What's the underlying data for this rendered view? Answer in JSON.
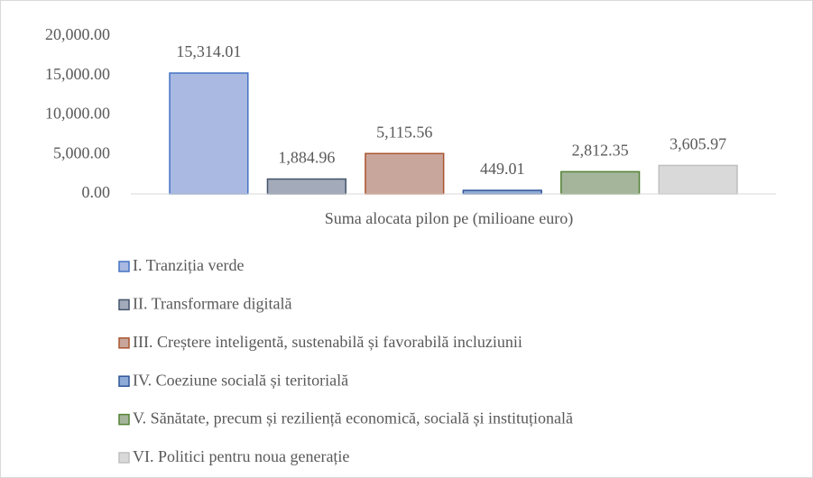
{
  "chart_data": {
    "type": "bar",
    "categories": [
      "Suma alocata pilon pe (milioane euro)"
    ],
    "series": [
      {
        "name": "I. Tranziția verde",
        "color": "#a9b9e2",
        "edgecolor": "#4472c4",
        "values": [
          15314.01
        ],
        "value_labels": [
          "15,314.01"
        ]
      },
      {
        "name": "II. Transformare digitală",
        "color": "#a3aab9",
        "edgecolor": "#44546a",
        "values": [
          1884.96
        ],
        "value_labels": [
          "1,884.96"
        ]
      },
      {
        "name": "III. Creștere inteligentă, sustenabilă și favorabilă incluziunii",
        "color": "#c9a69c",
        "edgecolor": "#a9552f",
        "values": [
          5115.56
        ],
        "value_labels": [
          "5,115.56"
        ]
      },
      {
        "name": "IV. Coeziune socială și teritorială",
        "color": "#8eabd8",
        "edgecolor": "#2f5597",
        "values": [
          449.01
        ],
        "value_labels": [
          "449.01"
        ]
      },
      {
        "name": "V. Sănătate, precum și reziliență economică, socială și instituțională",
        "color": "#a4b59c",
        "edgecolor": "#548235",
        "values": [
          2812.35
        ],
        "value_labels": [
          "2,812.35"
        ]
      },
      {
        "name": "VI. Politici pentru noua generație",
        "color": "#d9d9d9",
        "edgecolor": "#bfbfbf",
        "values": [
          3605.97
        ],
        "value_labels": [
          "3,605.97"
        ]
      }
    ],
    "ylim": [
      0,
      20000
    ],
    "yticks": [
      {
        "value": 0,
        "label": "0.00"
      },
      {
        "value": 5000,
        "label": "5,000.00"
      },
      {
        "value": 10000,
        "label": "10,000.00"
      },
      {
        "value": 15000,
        "label": "15,000.00"
      },
      {
        "value": 20000,
        "label": "20,000.00"
      }
    ],
    "grid": false,
    "legend": "bottom"
  }
}
